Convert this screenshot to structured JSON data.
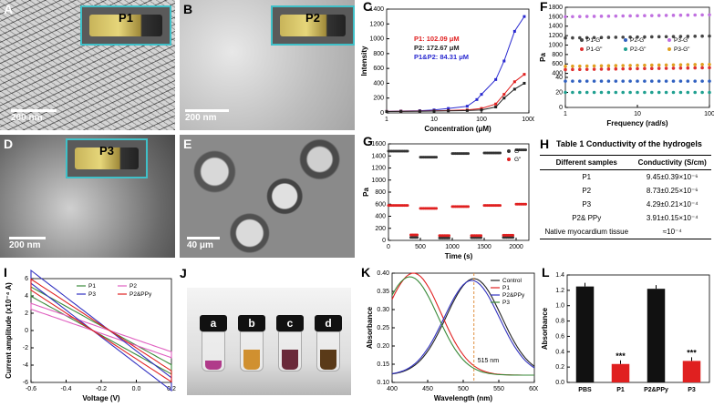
{
  "panels": {
    "A": {
      "label": "A",
      "inset": "P1",
      "scale": "200 nm"
    },
    "B": {
      "label": "B",
      "inset": "P2",
      "scale": "200 nm"
    },
    "D": {
      "label": "D",
      "inset": "P3",
      "scale": "200 nm"
    },
    "E": {
      "label": "E",
      "scale": "40 μm"
    },
    "J": {
      "label": "J",
      "vials": [
        "a",
        "b",
        "c",
        "d"
      ]
    }
  },
  "table": {
    "label": "H",
    "title": "Table 1 Conductivity of the hydrogels",
    "headers": [
      "Different samples",
      "Conductivity (S/cm)"
    ],
    "rows": [
      [
        "P1",
        "9.45±0.39×10⁻⁶"
      ],
      [
        "P2",
        "8.73±0.25×10⁻⁶"
      ],
      [
        "P3",
        "4.29±0.21×10⁻⁴"
      ],
      [
        "P2& PPy",
        "3.91±0.15×10⁻⁴"
      ],
      [
        "Native myocardium tissue",
        "≈10⁻⁴"
      ]
    ]
  },
  "colors": {
    "P1": "#e02020",
    "P2": "#222222",
    "P1P2": "#2a2ad0",
    "P3": "#3a8a3a",
    "ppy": "#2a2ad0",
    "cyan": "#3fc0c8"
  },
  "chart_data": [
    {
      "id": "C",
      "label": "C",
      "type": "line",
      "xlabel": "Concentration (μM)",
      "ylabel": "Intensity",
      "x_scale": "log",
      "xlim": [
        1,
        1000
      ],
      "ylim": [
        0,
        1400
      ],
      "xticks": [
        "1",
        "10",
        "100",
        "1000"
      ],
      "yticks": [
        0,
        200,
        400,
        600,
        800,
        1000,
        1200,
        1400
      ],
      "annotations": [
        {
          "text": "P1: 102.09 μM",
          "color": "#e02020"
        },
        {
          "text": "P2: 172.67 μM",
          "color": "#222222"
        },
        {
          "text": "P1&P2: 84.31 μM",
          "color": "#2a2ad0"
        }
      ],
      "series": [
        {
          "color": "#2a2ad0",
          "x": [
            1,
            2,
            5,
            10,
            20,
            50,
            80,
            100,
            200,
            300,
            500,
            800
          ],
          "y": [
            20,
            25,
            30,
            40,
            60,
            90,
            180,
            250,
            450,
            700,
            1100,
            1300
          ]
        },
        {
          "color": "#e02020",
          "x": [
            1,
            2,
            5,
            10,
            20,
            50,
            100,
            200,
            300,
            500,
            800
          ],
          "y": [
            20,
            22,
            24,
            28,
            32,
            40,
            60,
            120,
            250,
            420,
            520
          ]
        },
        {
          "color": "#222222",
          "x": [
            1,
            2,
            5,
            10,
            20,
            50,
            100,
            200,
            300,
            500,
            800
          ],
          "y": [
            18,
            20,
            22,
            25,
            28,
            32,
            40,
            80,
            200,
            320,
            400
          ]
        }
      ]
    },
    {
      "id": "F",
      "label": "F",
      "type": "scatter",
      "xlabel": "Frequency (rad/s)",
      "ylabel": "Pa",
      "x_scale": "log",
      "xlim": [
        1,
        100
      ],
      "xticks": [
        "1",
        "10",
        "100"
      ],
      "yticks": [
        0,
        20,
        40,
        400,
        600,
        800,
        1000,
        1200,
        1400,
        1600,
        1800
      ],
      "legend": [
        "P1-G'",
        "P2-G'",
        "P3-G'",
        "P1-G\"",
        "P2-G\"",
        "P3-G\""
      ],
      "series": [
        {
          "name": "P1-G'",
          "color": "#444444",
          "marker": "square",
          "y": 1150
        },
        {
          "name": "P2-G'",
          "color": "#3060c0",
          "marker": "triangle",
          "y": 35
        },
        {
          "name": "P3-G'",
          "color": "#c070e0",
          "marker": "diamond",
          "y": 1600
        },
        {
          "name": "P1-G\"",
          "color": "#e03030",
          "marker": "circle",
          "y": 480
        },
        {
          "name": "P2-G\"",
          "color": "#20a090",
          "marker": "triangle-down",
          "y": 20
        },
        {
          "name": "P3-G\"",
          "color": "#e0a020",
          "marker": "star",
          "y": 550
        }
      ]
    },
    {
      "id": "G",
      "label": "G",
      "type": "scatter",
      "xlabel": "Time (s)",
      "ylabel": "Pa",
      "xlim": [
        0,
        2200
      ],
      "ylim": [
        0,
        1600
      ],
      "xticks": [
        0,
        500,
        1000,
        1500,
        2000
      ],
      "yticks": [
        0,
        200,
        400,
        600,
        800,
        1000,
        1200,
        1400,
        1600
      ],
      "legend": [
        "G'",
        "G\""
      ],
      "series": [
        {
          "name": "G'",
          "color": "#333333",
          "segments": [
            [
              0,
              300,
              1480
            ],
            [
              350,
              450,
              50
            ],
            [
              500,
              750,
              1380
            ],
            [
              800,
              950,
              40
            ],
            [
              1000,
              1250,
              1440
            ],
            [
              1300,
              1450,
              45
            ],
            [
              1500,
              1750,
              1450
            ],
            [
              1800,
              1950,
              50
            ],
            [
              2000,
              2150,
              1500
            ]
          ]
        },
        {
          "name": "G\"",
          "color": "#e02020",
          "segments": [
            [
              0,
              300,
              580
            ],
            [
              350,
              450,
              90
            ],
            [
              500,
              750,
              530
            ],
            [
              800,
              950,
              80
            ],
            [
              1000,
              1250,
              560
            ],
            [
              1300,
              1450,
              80
            ],
            [
              1500,
              1750,
              580
            ],
            [
              1800,
              1950,
              85
            ],
            [
              2000,
              2150,
              600
            ]
          ]
        }
      ]
    },
    {
      "id": "I",
      "label": "I",
      "type": "line",
      "xlabel": "Voltage (V)",
      "ylabel": "Current amplitude (x10⁻⁴ A)",
      "xlim": [
        -0.6,
        0.2
      ],
      "ylim": [
        -6,
        6
      ],
      "xticks": [
        -0.6,
        -0.4,
        -0.2,
        0.0,
        0.2
      ],
      "yticks": [
        -6,
        -4,
        -2,
        0,
        2,
        4,
        6
      ],
      "legend": [
        "P1",
        "P2",
        "P3",
        "P2&PPy"
      ],
      "series": [
        {
          "name": "P1",
          "color": "#3a8a3a",
          "amp": 4.5
        },
        {
          "name": "P2",
          "color": "#e060c0",
          "amp": 2.8
        },
        {
          "name": "P3",
          "color": "#3030c0",
          "amp": 6.2
        },
        {
          "name": "P2&PPy",
          "color": "#e02020",
          "amp": 5.3
        }
      ]
    },
    {
      "id": "K",
      "label": "K",
      "type": "line",
      "xlabel": "Wavelength (nm)",
      "ylabel": "Absorbance",
      "xlim": [
        400,
        600
      ],
      "ylim": [
        0.1,
        0.4
      ],
      "xticks": [
        400,
        450,
        500,
        550,
        600
      ],
      "yticks": [
        0.1,
        0.15,
        0.2,
        0.25,
        0.3,
        0.35,
        0.4
      ],
      "annotation": "515 nm",
      "legend": [
        "Control",
        "P1",
        "P2&PPy",
        "P3"
      ],
      "series": [
        {
          "name": "Control",
          "color": "#222222",
          "peak": 515,
          "max": 0.385
        },
        {
          "name": "P1",
          "color": "#e02020",
          "peak": 430,
          "max": 0.4
        },
        {
          "name": "P2&PPy",
          "color": "#3030c0",
          "peak": 512,
          "max": 0.38
        },
        {
          "name": "P3",
          "color": "#3a8a3a",
          "peak": 425,
          "max": 0.39
        }
      ]
    },
    {
      "id": "L",
      "label": "L",
      "type": "bar",
      "ylabel": "Absorbance",
      "categories": [
        "PBS",
        "P1",
        "P2&PPy",
        "P3"
      ],
      "values": [
        1.25,
        0.24,
        1.22,
        0.28
      ],
      "colors": [
        "#111111",
        "#e02020",
        "#111111",
        "#e02020"
      ],
      "ylim": [
        0,
        1.4
      ],
      "yticks": [
        0.0,
        0.2,
        0.4,
        0.6,
        0.8,
        1.0,
        1.2,
        1.4
      ],
      "significance": [
        "",
        "***",
        "",
        "***"
      ]
    }
  ]
}
